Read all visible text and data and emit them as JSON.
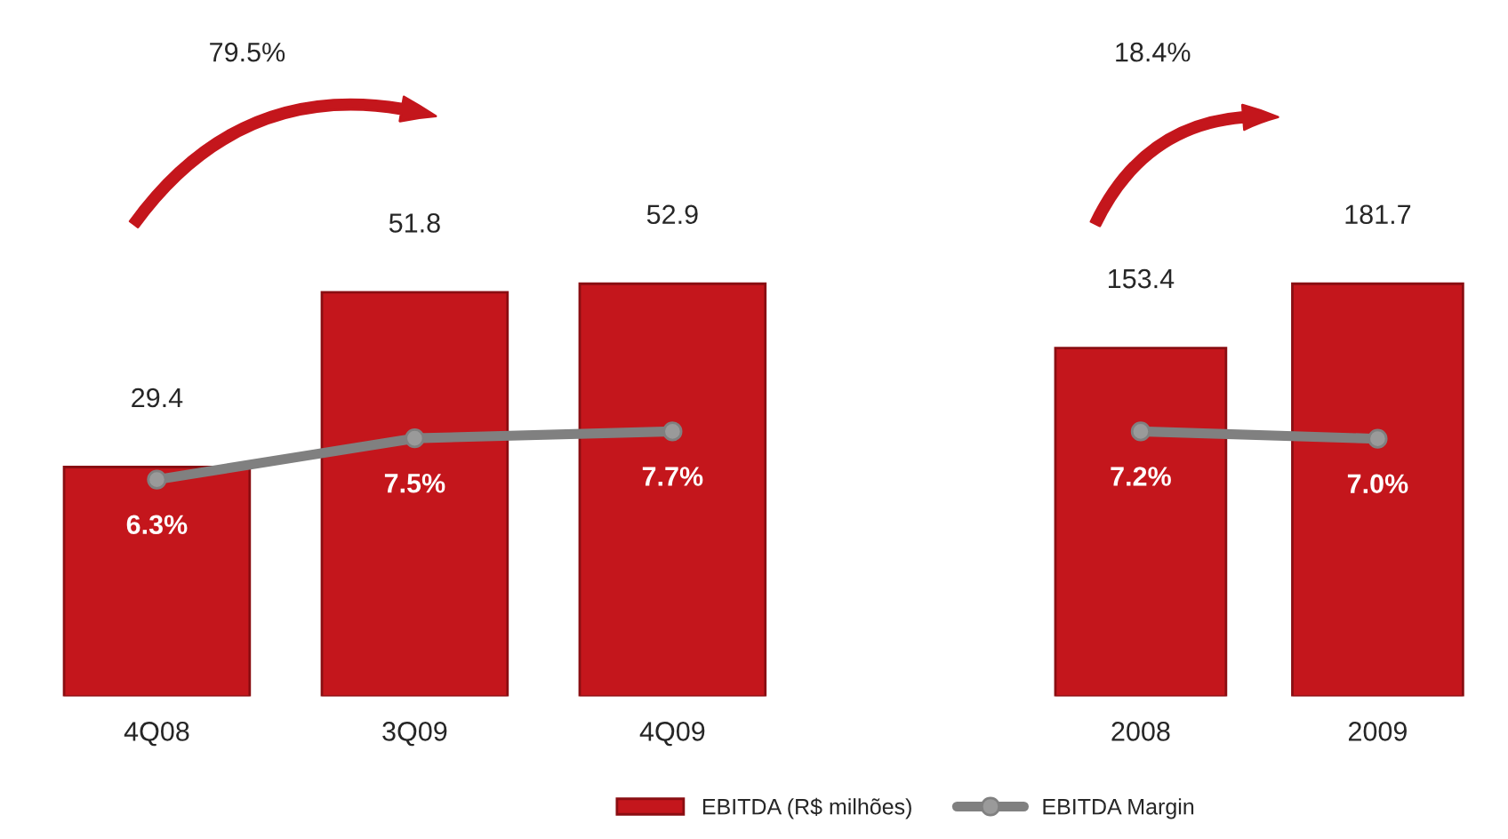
{
  "chart_data": [
    {
      "type": "bar",
      "categories": [
        "4Q08",
        "3Q09",
        "4Q09"
      ],
      "tick_labels": "x",
      "grid": false,
      "marker": "circle",
      "annotations": [
        "79.5%"
      ],
      "series": [
        {
          "color": "#c4161c",
          "values": [
            29.4,
            51.8,
            52.9
          ],
          "value_labels": [
            "29.4",
            "51.8",
            "52.9"
          ]
        },
        {
          "type": "line",
          "axis": "y2",
          "color": "#808080",
          "values": [
            6.3,
            7.5,
            7.7
          ],
          "value_labels": [
            "6.3%",
            "7.5%",
            "7.7%"
          ]
        }
      ]
    },
    {
      "type": "bar",
      "categories": [
        "2008",
        "2009"
      ],
      "tick_labels": "x",
      "grid": false,
      "legend": "bottom",
      "marker": "circle",
      "annotations": [
        "18.4%"
      ],
      "series": [
        {
          "name": "EBITDA (R$ milhões)",
          "color": "#c4161c",
          "values": [
            153.4,
            181.7
          ],
          "value_labels": [
            "153.4",
            "181.7"
          ]
        },
        {
          "name": "EBITDA Margin",
          "type": "line",
          "axis": "y2",
          "color": "#808080",
          "values": [
            7.2,
            7.0
          ],
          "value_labels": [
            "7.2%",
            "7.0%"
          ]
        }
      ]
    }
  ]
}
